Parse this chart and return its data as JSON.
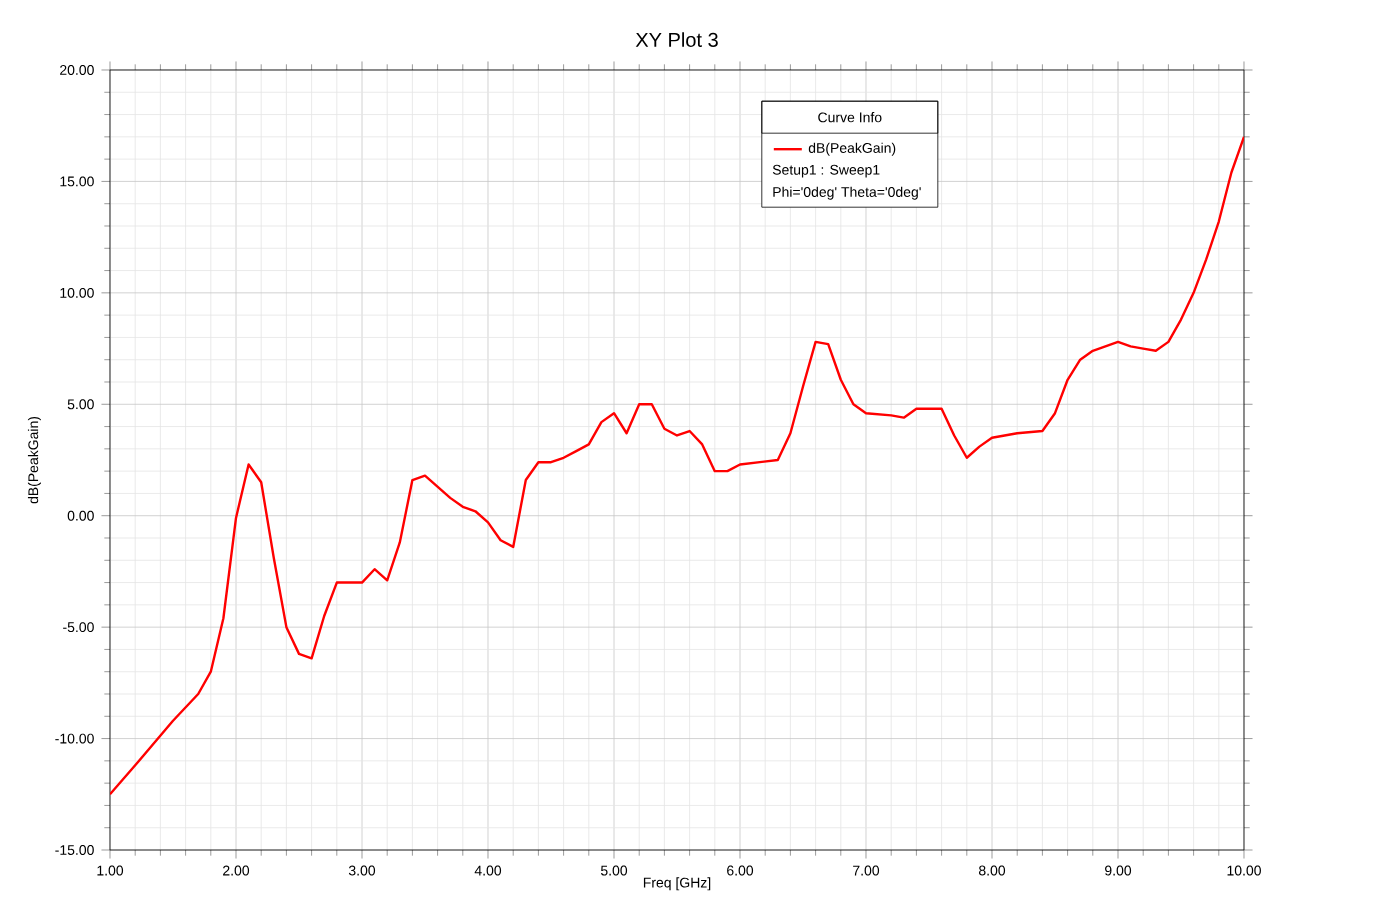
{
  "chart_data": {
    "type": "line",
    "title": "XY Plot 3",
    "xlabel": "Freq [GHz]",
    "ylabel": "dB(PeakGain)",
    "legend_title": "Curve Info",
    "annotations": [
      "Setup1 : Sweep1",
      "Phi='0deg' Theta='0deg'"
    ],
    "xlim": [
      1,
      10
    ],
    "ylim": [
      -15,
      20
    ],
    "xticks": [
      {
        "value": 1,
        "label": "1.00"
      },
      {
        "value": 2,
        "label": "2.00"
      },
      {
        "value": 3,
        "label": "3.00"
      },
      {
        "value": 4,
        "label": "4.00"
      },
      {
        "value": 5,
        "label": "5.00"
      },
      {
        "value": 6,
        "label": "6.00"
      },
      {
        "value": 7,
        "label": "7.00"
      },
      {
        "value": 8,
        "label": "8.00"
      },
      {
        "value": 9,
        "label": "9.00"
      },
      {
        "value": 10,
        "label": "10.00"
      }
    ],
    "yticks": [
      {
        "value": -15,
        "label": "-15.00"
      },
      {
        "value": -10,
        "label": "-10.00"
      },
      {
        "value": -5,
        "label": "-5.00"
      },
      {
        "value": 0,
        "label": "0.00"
      },
      {
        "value": 5,
        "label": "5.00"
      },
      {
        "value": 10,
        "label": "10.00"
      },
      {
        "value": 15,
        "label": "15.00"
      },
      {
        "value": 20,
        "label": "20.00"
      }
    ],
    "grid": true,
    "legend": "top right",
    "line_style": "solid",
    "marker": "none",
    "x": [
      1.0,
      1.2,
      1.5,
      1.7,
      1.8,
      1.9,
      2.0,
      2.1,
      2.2,
      2.3,
      2.4,
      2.5,
      2.6,
      2.7,
      2.8,
      3.0,
      3.1,
      3.2,
      3.3,
      3.4,
      3.5,
      3.6,
      3.7,
      3.8,
      3.9,
      4.0,
      4.1,
      4.2,
      4.3,
      4.4,
      4.5,
      4.6,
      4.7,
      4.8,
      4.9,
      5.0,
      5.1,
      5.2,
      5.3,
      5.4,
      5.5,
      5.6,
      5.7,
      5.8,
      5.9,
      6.0,
      6.3,
      6.4,
      6.5,
      6.6,
      6.7,
      6.8,
      6.9,
      7.0,
      7.2,
      7.3,
      7.4,
      7.6,
      7.7,
      7.8,
      7.9,
      8.0,
      8.1,
      8.2,
      8.4,
      8.5,
      8.6,
      8.7,
      8.8,
      8.9,
      9.0,
      9.1,
      9.2,
      9.3,
      9.4,
      9.5,
      9.6,
      9.7,
      9.8,
      9.9,
      10.0
    ],
    "series": [
      {
        "name": "dB(PeakGain)",
        "color": "#ff0000",
        "values": [
          -12.5,
          -11.2,
          -9.2,
          -8.0,
          -7.0,
          -4.6,
          -0.1,
          2.3,
          1.5,
          -1.9,
          -5.0,
          -6.2,
          -6.4,
          -4.5,
          -3.0,
          -3.0,
          -2.4,
          -2.9,
          -1.2,
          1.6,
          1.8,
          1.3,
          0.8,
          0.4,
          0.2,
          -0.3,
          -1.1,
          -1.4,
          1.6,
          2.4,
          2.4,
          2.6,
          2.9,
          3.2,
          4.2,
          4.6,
          3.7,
          5.0,
          5.0,
          3.9,
          3.6,
          3.8,
          3.2,
          2.0,
          2.0,
          2.3,
          2.5,
          3.7,
          5.8,
          7.8,
          7.7,
          6.1,
          5.0,
          4.6,
          4.5,
          4.4,
          4.8,
          4.8,
          3.6,
          2.6,
          3.1,
          3.5,
          3.6,
          3.7,
          3.8,
          4.6,
          6.1,
          7.0,
          7.4,
          7.6,
          7.8,
          7.6,
          7.5,
          7.4,
          7.8,
          8.8,
          10.0,
          11.5,
          13.2,
          15.4,
          17.0
        ]
      }
    ]
  }
}
